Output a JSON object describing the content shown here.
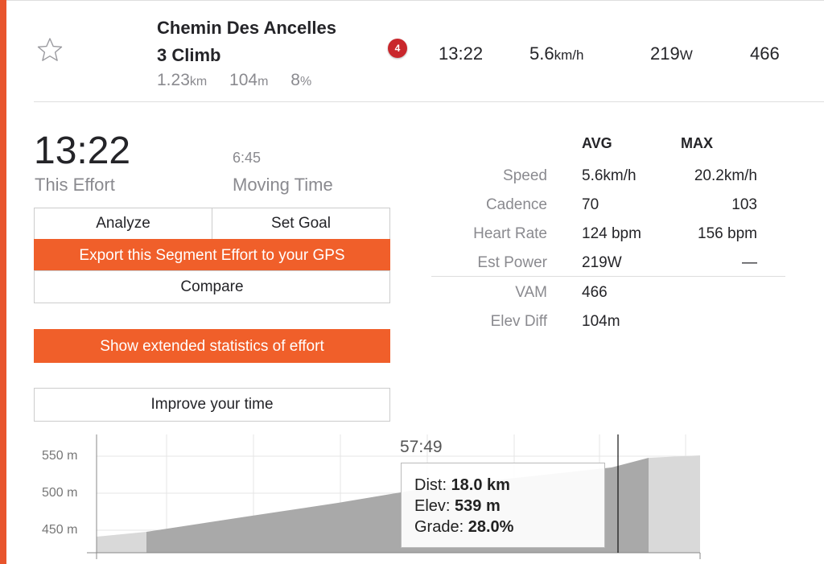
{
  "segment": {
    "name_line1": "Chemin Des Ancelles",
    "name_line2": "3 Climb",
    "distance": "1.23",
    "distance_unit": "km",
    "elevation": "104",
    "elevation_unit": "m",
    "grade": "8",
    "grade_unit": "%",
    "rank_badge": "4",
    "time": "13:22",
    "speed": "5.6",
    "speed_unit": "km/h",
    "power": "219",
    "power_unit": "W",
    "vam": "466"
  },
  "effort": {
    "time": "13:22",
    "time_label": "This Effort",
    "moving_time": "6:45",
    "moving_label": "Moving Time"
  },
  "buttons": {
    "analyze": "Analyze",
    "set_goal": "Set Goal",
    "export": "Export this Segment Effort to your GPS",
    "compare": "Compare",
    "extended": "Show extended statistics of effort",
    "improve": "Improve your time"
  },
  "stats": {
    "col_avg": "AVG",
    "col_max": "MAX",
    "rows": [
      {
        "label": "Speed",
        "avg": "5.6km/h",
        "max": "20.2km/h"
      },
      {
        "label": "Cadence",
        "avg": "70",
        "max": "103"
      },
      {
        "label": "Heart Rate",
        "avg": "124 bpm",
        "max": "156 bpm"
      },
      {
        "label": "Est Power",
        "avg": "219W",
        "max": "—"
      },
      {
        "label": "VAM",
        "avg": "466",
        "max": ""
      },
      {
        "label": "Elev Diff",
        "avg": "104m",
        "max": ""
      }
    ]
  },
  "chart": {
    "y_labels": [
      "550 m",
      "500 m",
      "450 m"
    ],
    "cursor_time": "57:49",
    "tooltip": {
      "dist_label": "Dist:",
      "dist_value": "18.0 km",
      "elev_label": "Elev:",
      "elev_value": "539 m",
      "grade_label": "Grade:",
      "grade_value": "28.0%"
    }
  },
  "colors": {
    "accent": "#e8552d",
    "button_orange": "#f05f2a",
    "badge_red": "#c9272c"
  },
  "icons": {
    "star": "star-outline-icon"
  }
}
